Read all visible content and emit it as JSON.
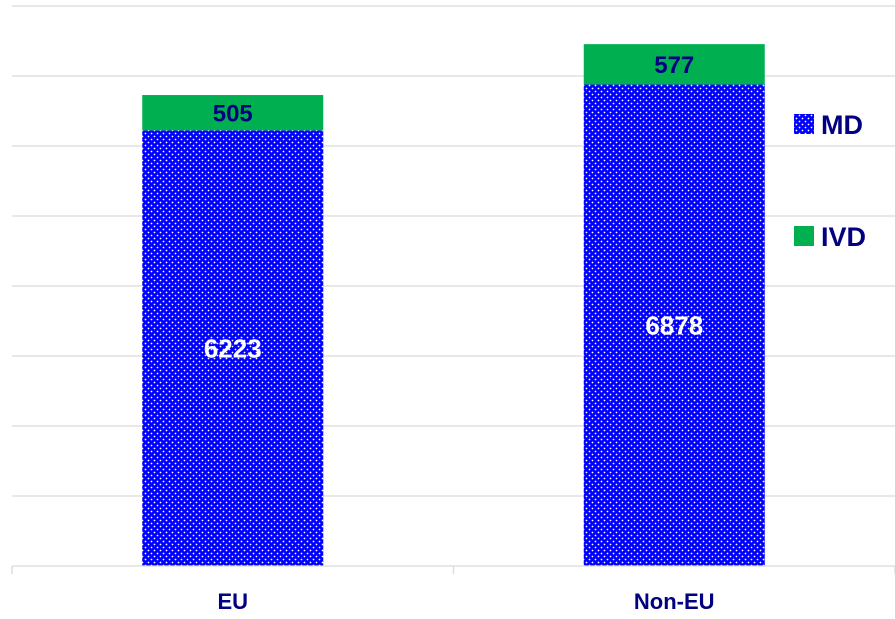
{
  "chart_data": {
    "type": "bar",
    "stacked": true,
    "title": "",
    "xlabel": "",
    "ylabel": "",
    "categories": [
      "EU",
      "Non-EU"
    ],
    "series": [
      {
        "name": "MD",
        "values": [
          6223,
          6878
        ],
        "color": "#0000ff",
        "pattern": "dotted",
        "label_colors": [
          "#ffffff",
          "#ffffff"
        ]
      },
      {
        "name": "IVD",
        "values": [
          505,
          577
        ],
        "color": "#00b050",
        "pattern": "solid",
        "label_colors": [
          "#000080",
          "#000080"
        ]
      }
    ],
    "ylim": [
      0,
      8000
    ],
    "y_gridlines": [
      0,
      1000,
      2000,
      3000,
      4000,
      5000,
      6000,
      7000,
      8000
    ],
    "y_tick_labels_shown": false,
    "grid": true,
    "legend": {
      "position": "right",
      "entries": [
        "MD",
        "IVD"
      ]
    },
    "colors": {
      "grid": "#d9d9d9",
      "text": "#000080"
    }
  }
}
